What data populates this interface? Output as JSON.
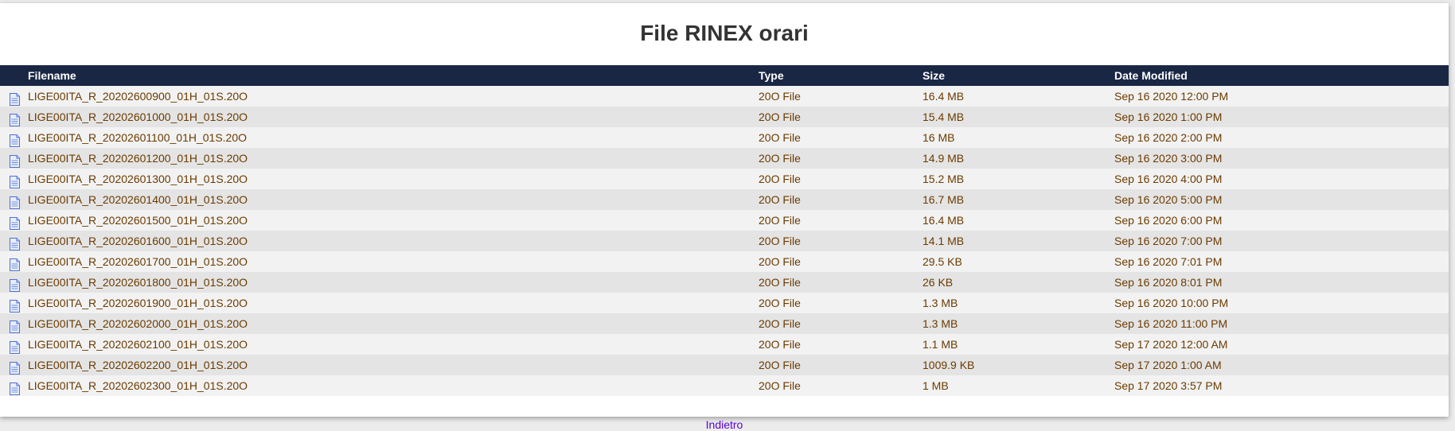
{
  "page": {
    "title": "File RINEX orari"
  },
  "table": {
    "columns": [
      "Filename",
      "Type",
      "Size",
      "Date Modified"
    ],
    "rows": [
      {
        "filename": "LIGE00ITA_R_20202600900_01H_01S.20O",
        "type": "20O File",
        "size": "16.4 MB",
        "date": "Sep 16 2020 12:00 PM"
      },
      {
        "filename": "LIGE00ITA_R_20202601000_01H_01S.20O",
        "type": "20O File",
        "size": "15.4 MB",
        "date": "Sep 16 2020 1:00 PM"
      },
      {
        "filename": "LIGE00ITA_R_20202601100_01H_01S.20O",
        "type": "20O File",
        "size": "16 MB",
        "date": "Sep 16 2020 2:00 PM"
      },
      {
        "filename": "LIGE00ITA_R_20202601200_01H_01S.20O",
        "type": "20O File",
        "size": "14.9 MB",
        "date": "Sep 16 2020 3:00 PM"
      },
      {
        "filename": "LIGE00ITA_R_20202601300_01H_01S.20O",
        "type": "20O File",
        "size": "15.2 MB",
        "date": "Sep 16 2020 4:00 PM"
      },
      {
        "filename": "LIGE00ITA_R_20202601400_01H_01S.20O",
        "type": "20O File",
        "size": "16.7 MB",
        "date": "Sep 16 2020 5:00 PM"
      },
      {
        "filename": "LIGE00ITA_R_20202601500_01H_01S.20O",
        "type": "20O File",
        "size": "16.4 MB",
        "date": "Sep 16 2020 6:00 PM"
      },
      {
        "filename": "LIGE00ITA_R_20202601600_01H_01S.20O",
        "type": "20O File",
        "size": "14.1 MB",
        "date": "Sep 16 2020 7:00 PM"
      },
      {
        "filename": "LIGE00ITA_R_20202601700_01H_01S.20O",
        "type": "20O File",
        "size": "29.5 KB",
        "date": "Sep 16 2020 7:01 PM"
      },
      {
        "filename": "LIGE00ITA_R_20202601800_01H_01S.20O",
        "type": "20O File",
        "size": "26 KB",
        "date": "Sep 16 2020 8:01 PM"
      },
      {
        "filename": "LIGE00ITA_R_20202601900_01H_01S.20O",
        "type": "20O File",
        "size": "1.3 MB",
        "date": "Sep 16 2020 10:00 PM"
      },
      {
        "filename": "LIGE00ITA_R_20202602000_01H_01S.20O",
        "type": "20O File",
        "size": "1.3 MB",
        "date": "Sep 16 2020 11:00 PM"
      },
      {
        "filename": "LIGE00ITA_R_20202602100_01H_01S.20O",
        "type": "20O File",
        "size": "1.1 MB",
        "date": "Sep 17 2020 12:00 AM"
      },
      {
        "filename": "LIGE00ITA_R_20202602200_01H_01S.20O",
        "type": "20O File",
        "size": "1009.9 KB",
        "date": "Sep 17 2020 1:00 AM"
      },
      {
        "filename": "LIGE00ITA_R_20202602300_01H_01S.20O",
        "type": "20O File",
        "size": "1 MB",
        "date": "Sep 17 2020 3:57 PM"
      }
    ]
  },
  "footer": {
    "back_link": "Indietro"
  },
  "icons": {
    "file": "file-icon"
  },
  "colors": {
    "header_bg": "#1a2744",
    "row_text": "#6b3b00",
    "link": "#5500cc"
  }
}
